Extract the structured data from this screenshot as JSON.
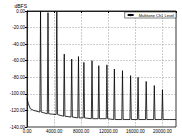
{
  "chart_data": {
    "type": "line",
    "y_label": "dBFS",
    "series": [
      {
        "name": "Multitone Ch1 Level",
        "color": "#000000",
        "x": [
          0,
          200,
          500,
          1000,
          1900,
          2000,
          2100,
          3000,
          3100,
          3200,
          4300,
          4400,
          4500,
          5400,
          5500,
          5600,
          6500,
          6600,
          6700,
          7500,
          7600,
          7700,
          8300,
          8400,
          8500,
          9500,
          9600,
          9700,
          10500,
          10600,
          10700,
          11700,
          11800,
          11900,
          12800,
          12900,
          13000,
          14000,
          14100,
          14200,
          15200,
          15300,
          15400,
          16300,
          16400,
          16500,
          17500,
          17600,
          17700,
          18700,
          18800,
          18900,
          19900,
          20000,
          20100,
          21000,
          22000
        ],
        "values": [
          -105,
          -112,
          -118,
          -120,
          -122,
          0,
          -122,
          -124,
          -2,
          -124,
          -125,
          -1,
          -125,
          -127,
          -52,
          -127,
          -128,
          -58,
          -128,
          -129,
          -55,
          -129,
          -129,
          -62,
          -129,
          -130,
          -60,
          -130,
          -130,
          -66,
          -130,
          -130,
          -65,
          -130,
          -131,
          -70,
          -131,
          -131,
          -72,
          -131,
          -131,
          -78,
          -131,
          -131,
          -80,
          -131,
          -131,
          -85,
          -131,
          -131,
          -90,
          -131,
          -131,
          -95,
          -131,
          -131,
          -131
        ]
      }
    ],
    "xlim": [
      0,
      22000
    ],
    "xticks": [
      {
        "value": 0,
        "label": "0.00"
      },
      {
        "value": 4000,
        "label": "4000.00"
      },
      {
        "value": 8000,
        "label": "8000.00"
      },
      {
        "value": 12000,
        "label": "12000.00"
      },
      {
        "value": 16000,
        "label": "16000.00"
      },
      {
        "value": 20000,
        "label": "20000.00"
      }
    ],
    "ylim": [
      -140,
      0
    ],
    "yticks": [
      {
        "value": -140,
        "label": "-140.00"
      },
      {
        "value": -120,
        "label": "-120.00"
      },
      {
        "value": -100,
        "label": "-100.00"
      },
      {
        "value": -80,
        "label": "-80.00"
      },
      {
        "value": -60,
        "label": "-60.00"
      },
      {
        "value": -40,
        "label": "-40.00"
      },
      {
        "value": -20,
        "label": "-20.00"
      },
      {
        "value": 0,
        "label": "0.00"
      }
    ],
    "grid": true,
    "legend": "top-right"
  }
}
